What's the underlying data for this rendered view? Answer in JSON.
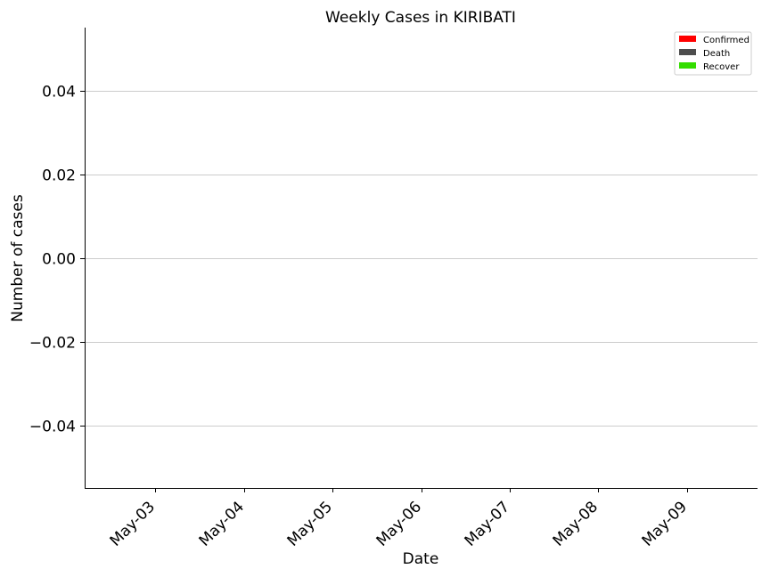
{
  "chart_data": {
    "type": "bar",
    "title": "Weekly Cases in KIRIBATI",
    "xlabel": "Date",
    "ylabel": "Number of cases",
    "categories": [
      "May-03",
      "May-04",
      "May-05",
      "May-06",
      "May-07",
      "May-08",
      "May-09"
    ],
    "series": [
      {
        "name": "Confirmed",
        "color": "#ff0000",
        "values": [
          0,
          0,
          0,
          0,
          0,
          0,
          0
        ]
      },
      {
        "name": "Death",
        "color": "#4d4d4d",
        "values": [
          0,
          0,
          0,
          0,
          0,
          0,
          0
        ]
      },
      {
        "name": "Recover",
        "color": "#33dd00",
        "values": [
          0,
          0,
          0,
          0,
          0,
          0,
          0
        ]
      }
    ],
    "ylim": [
      -0.055,
      0.055
    ],
    "yticks": [
      {
        "value": -0.04,
        "label": "−0.04"
      },
      {
        "value": -0.02,
        "label": "−0.02"
      },
      {
        "value": 0.0,
        "label": "0.00"
      },
      {
        "value": 0.02,
        "label": "0.02"
      },
      {
        "value": 0.04,
        "label": "0.04"
      }
    ],
    "grid": "horizontal",
    "legend_position": "top-right"
  }
}
